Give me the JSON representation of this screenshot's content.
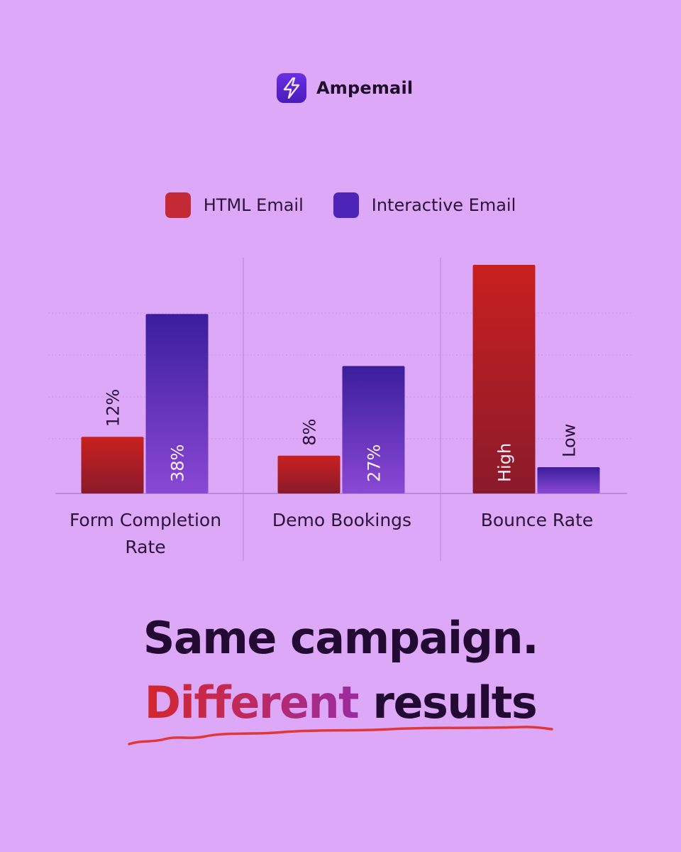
{
  "brand": {
    "name": "Ampemail",
    "icon": "lightning-bolt-icon"
  },
  "legend": [
    {
      "label": "HTML Email",
      "color": "#c42a35"
    },
    {
      "label": "Interactive Email",
      "color": "#4d24b8"
    }
  ],
  "chart_data": {
    "type": "bar",
    "categories": [
      "Form Completion Rate",
      "Demo Bookings",
      "Bounce Rate"
    ],
    "category_lines": [
      [
        "Form Completion",
        "Rate"
      ],
      [
        "Demo Bookings"
      ],
      [
        "Bounce Rate"
      ]
    ],
    "series": [
      {
        "name": "HTML Email",
        "values": [
          12,
          8,
          null
        ],
        "labels": [
          "12%",
          "8%",
          "High"
        ],
        "color": "#c42a35"
      },
      {
        "name": "Interactive Email",
        "values": [
          38,
          27,
          null
        ],
        "labels": [
          "38%",
          "27%",
          "Low"
        ],
        "color": "#4d24b8"
      }
    ],
    "qualitative": {
      "category": "Bounce Rate",
      "HTML Email": "High",
      "Interactive Email": "Low"
    },
    "ylim": [
      0,
      48
    ],
    "grid": true,
    "legend_position": "top-center"
  },
  "headline": {
    "line1": "Same campaign.",
    "accent": "Different",
    "rest": " results"
  },
  "colors": {
    "background": "#dea8f9",
    "text_dark": "#230a33",
    "accent_red": "#d4262d",
    "underline": "#e0383a"
  }
}
